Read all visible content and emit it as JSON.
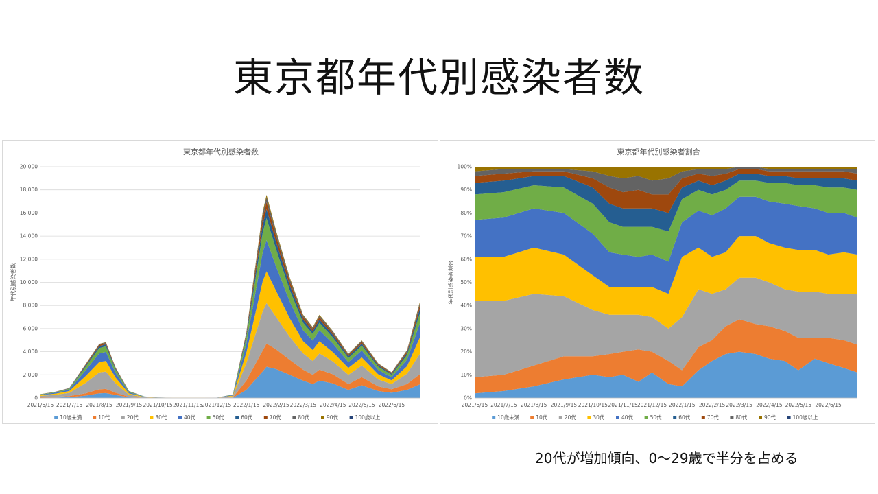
{
  "slide": {
    "title": "東京都年代別感染者数",
    "caption": "20代が増加傾向、0～29歳で半分を占める"
  },
  "chart_data": [
    {
      "type": "area",
      "stacked": true,
      "title": "東京都年代別感染者数",
      "ylabel": "年代別感染者数",
      "xlabel": "",
      "ylim": [
        0,
        20000
      ],
      "yticks": [
        "0",
        "2,000",
        "4,000",
        "6,000",
        "8,000",
        "10,000",
        "12,000",
        "14,000",
        "16,000",
        "18,000",
        "20,000"
      ],
      "xticks": [
        "2021/6/15",
        "2021/7/15",
        "2021/8/15",
        "2021/9/15",
        "2021/10/15",
        "2021/11/15",
        "2021/12/15",
        "2022/1/15",
        "2022/2/15",
        "2022/3/15",
        "2022/4/15",
        "2022/5/15",
        "2022/6/15"
      ],
      "grid": true,
      "legend_position": "bottom",
      "x": [
        "2021/6/15",
        "2021/7/1",
        "2021/7/15",
        "2021/8/1",
        "2021/8/15",
        "2021/8/22",
        "2021/9/1",
        "2021/9/15",
        "2021/10/1",
        "2021/10/15",
        "2021/11/1",
        "2021/11/15",
        "2021/12/1",
        "2021/12/15",
        "2022/1/1",
        "2022/1/15",
        "2022/2/1",
        "2022/2/5",
        "2022/2/15",
        "2022/3/1",
        "2022/3/15",
        "2022/3/25",
        "2022/4/1",
        "2022/4/15",
        "2022/5/1",
        "2022/5/15",
        "2022/6/1",
        "2022/6/15",
        "2022/7/1",
        "2022/7/15"
      ],
      "series": [
        {
          "name": "10歳未満",
          "values": [
            30,
            50,
            80,
            200,
            400,
            420,
            260,
            60,
            15,
            5,
            2,
            2,
            2,
            2,
            20,
            700,
            2300,
            2700,
            2500,
            2000,
            1500,
            1200,
            1500,
            1250,
            700,
            1100,
            600,
            450,
            700,
            1200
          ]
        },
        {
          "name": "10代",
          "values": [
            30,
            50,
            80,
            200,
            350,
            360,
            200,
            40,
            10,
            4,
            2,
            2,
            2,
            2,
            30,
            800,
            1800,
            2000,
            1700,
            1300,
            950,
            800,
            950,
            800,
            500,
            700,
            400,
            300,
            500,
            900
          ]
        },
        {
          "name": "20代",
          "values": [
            120,
            180,
            280,
            900,
            1450,
            1500,
            800,
            180,
            40,
            10,
            4,
            4,
            4,
            8,
            100,
            1500,
            3400,
            3500,
            2800,
            2000,
            1400,
            1200,
            1400,
            1100,
            800,
            1000,
            600,
            450,
            900,
            1800
          ]
        },
        {
          "name": "30代",
          "values": [
            60,
            100,
            160,
            600,
            900,
            920,
            500,
            110,
            25,
            8,
            3,
            3,
            3,
            5,
            60,
            900,
            2600,
            2750,
            2250,
            1600,
            1050,
            950,
            1050,
            800,
            600,
            700,
            450,
            320,
            650,
            1450
          ]
        },
        {
          "name": "40代",
          "values": [
            45,
            80,
            130,
            500,
            750,
            780,
            420,
            90,
            20,
            6,
            2,
            2,
            2,
            4,
            50,
            800,
            2500,
            2700,
            2100,
            1450,
            950,
            820,
            950,
            750,
            500,
            600,
            380,
            280,
            560,
            1250
          ]
        },
        {
          "name": "50代",
          "values": [
            25,
            45,
            70,
            300,
            460,
            480,
            260,
            60,
            12,
            4,
            1,
            1,
            1,
            3,
            30,
            500,
            1700,
            1900,
            1500,
            1000,
            650,
            560,
            650,
            520,
            350,
            420,
            270,
            200,
            400,
            900
          ]
        },
        {
          "name": "60代",
          "values": [
            10,
            20,
            30,
            110,
            170,
            175,
            100,
            25,
            6,
            2,
            1,
            1,
            1,
            1,
            10,
            200,
            700,
            780,
            620,
            420,
            280,
            240,
            280,
            220,
            150,
            180,
            120,
            90,
            170,
            400
          ]
        },
        {
          "name": "70代",
          "values": [
            8,
            15,
            20,
            70,
            100,
            105,
            60,
            18,
            4,
            1,
            1,
            1,
            1,
            1,
            8,
            150,
            560,
            620,
            490,
            330,
            210,
            180,
            210,
            165,
            110,
            140,
            90,
            70,
            130,
            300
          ]
        },
        {
          "name": "80代",
          "values": [
            5,
            8,
            12,
            40,
            60,
            62,
            35,
            10,
            3,
            1,
            0,
            0,
            0,
            0,
            4,
            90,
            380,
            420,
            330,
            220,
            140,
            120,
            140,
            110,
            75,
            95,
            60,
            45,
            85,
            200
          ]
        },
        {
          "name": "90代",
          "values": [
            2,
            4,
            6,
            18,
            26,
            27,
            15,
            5,
            1,
            0,
            0,
            0,
            0,
            0,
            2,
            40,
            170,
            190,
            150,
            100,
            64,
            55,
            64,
            50,
            34,
            43,
            27,
            20,
            38,
            90
          ]
        },
        {
          "name": "100歳以上",
          "values": [
            0,
            0,
            0,
            1,
            2,
            2,
            1,
            0,
            0,
            0,
            0,
            0,
            0,
            0,
            0,
            2,
            8,
            9,
            7,
            5,
            3,
            3,
            3,
            2,
            2,
            2,
            1,
            1,
            2,
            4
          ]
        }
      ]
    },
    {
      "type": "area",
      "stacked": true,
      "percent": true,
      "title": "東京都年代別感染者割合",
      "ylabel": "年代別感染者割合",
      "xlabel": "",
      "ylim": [
        0,
        100
      ],
      "yticks": [
        "0%",
        "10%",
        "20%",
        "30%",
        "40%",
        "50%",
        "60%",
        "70%",
        "80%",
        "90%",
        "100%"
      ],
      "xticks": [
        "2021/6/15",
        "2021/7/15",
        "2021/8/15",
        "2021/9/15",
        "2021/10/15",
        "2021/11/15",
        "2021/12/15",
        "2022/1/15",
        "2022/2/15",
        "2022/3/15",
        "2022/4/15",
        "2022/5/15",
        "2022/6/15"
      ],
      "grid": false,
      "legend_position": "bottom",
      "x": [
        "2021/6/15",
        "2021/7/15",
        "2021/8/15",
        "2021/9/15",
        "2021/10/15",
        "2021/11/1",
        "2021/11/15",
        "2021/12/1",
        "2021/12/15",
        "2022/1/1",
        "2022/1/15",
        "2022/2/1",
        "2022/2/15",
        "2022/3/1",
        "2022/3/15",
        "2022/4/1",
        "2022/4/15",
        "2022/5/1",
        "2022/5/15",
        "2022/6/1",
        "2022/6/15",
        "2022/7/1",
        "2022/7/15"
      ],
      "series": [
        {
          "name": "10歳未満",
          "values": [
            2,
            3,
            5,
            8,
            10,
            9,
            10,
            7,
            11,
            6,
            5,
            12,
            16,
            19,
            20,
            19,
            17,
            16,
            12,
            17,
            15,
            13,
            11
          ]
        },
        {
          "name": "10代",
          "values": [
            7,
            7,
            9,
            10,
            8,
            10,
            10,
            14,
            9,
            10,
            7,
            10,
            9,
            12,
            14,
            13,
            14,
            13,
            14,
            9,
            11,
            12,
            12
          ]
        },
        {
          "name": "20代",
          "values": [
            33,
            32,
            31,
            26,
            20,
            17,
            16,
            15,
            15,
            14,
            23,
            25,
            20,
            16,
            18,
            20,
            19,
            18,
            20,
            20,
            19,
            20,
            22
          ]
        },
        {
          "name": "30代",
          "values": [
            19,
            19,
            20,
            18,
            15,
            12,
            12,
            12,
            13,
            15,
            26,
            18,
            16,
            16,
            18,
            18,
            17,
            18,
            18,
            18,
            17,
            18,
            17
          ]
        },
        {
          "name": "40代",
          "values": [
            16,
            17,
            17,
            18,
            18,
            15,
            14,
            13,
            14,
            14,
            15,
            16,
            18,
            19,
            17,
            17,
            18,
            19,
            19,
            18,
            18,
            17,
            16
          ]
        },
        {
          "name": "50代",
          "values": [
            11,
            11,
            10,
            11,
            13,
            13,
            12,
            13,
            12,
            13,
            10,
            9,
            9,
            8,
            7,
            7,
            8,
            9,
            9,
            10,
            11,
            11,
            12
          ]
        },
        {
          "name": "60代",
          "values": [
            5,
            5,
            4,
            5,
            7,
            8,
            8,
            8,
            8,
            8,
            5,
            4,
            4,
            4,
            3,
            3,
            3,
            3,
            3,
            3,
            4,
            4,
            4
          ]
        },
        {
          "name": "70代",
          "values": [
            3,
            3,
            2,
            2,
            4,
            7,
            7,
            8,
            6,
            8,
            4,
            3,
            4,
            3,
            2,
            2,
            2,
            2,
            3,
            3,
            3,
            3,
            3
          ]
        },
        {
          "name": "80代",
          "values": [
            2,
            2,
            1,
            1,
            3,
            5,
            6,
            6,
            6,
            7,
            3,
            2,
            3,
            2,
            1,
            1,
            1,
            1,
            1,
            1,
            1,
            1,
            2
          ]
        },
        {
          "name": "90代",
          "values": [
            2,
            1,
            1,
            1,
            2,
            4,
            5,
            4,
            6,
            5,
            2,
            1,
            1,
            1,
            0,
            0,
            1,
            1,
            1,
            1,
            1,
            1,
            1
          ]
        },
        {
          "name": "100歳以上",
          "values": [
            0,
            0,
            0,
            0,
            0,
            0,
            0,
            0,
            0,
            0,
            0,
            0,
            0,
            0,
            0,
            0,
            0,
            0,
            0,
            0,
            0,
            0,
            0
          ]
        }
      ]
    }
  ],
  "colors": [
    "#5B9BD5",
    "#ED7D31",
    "#A5A5A5",
    "#FFC000",
    "#4472C4",
    "#70AD47",
    "#255E91",
    "#9E480E",
    "#636363",
    "#997300",
    "#264478"
  ]
}
